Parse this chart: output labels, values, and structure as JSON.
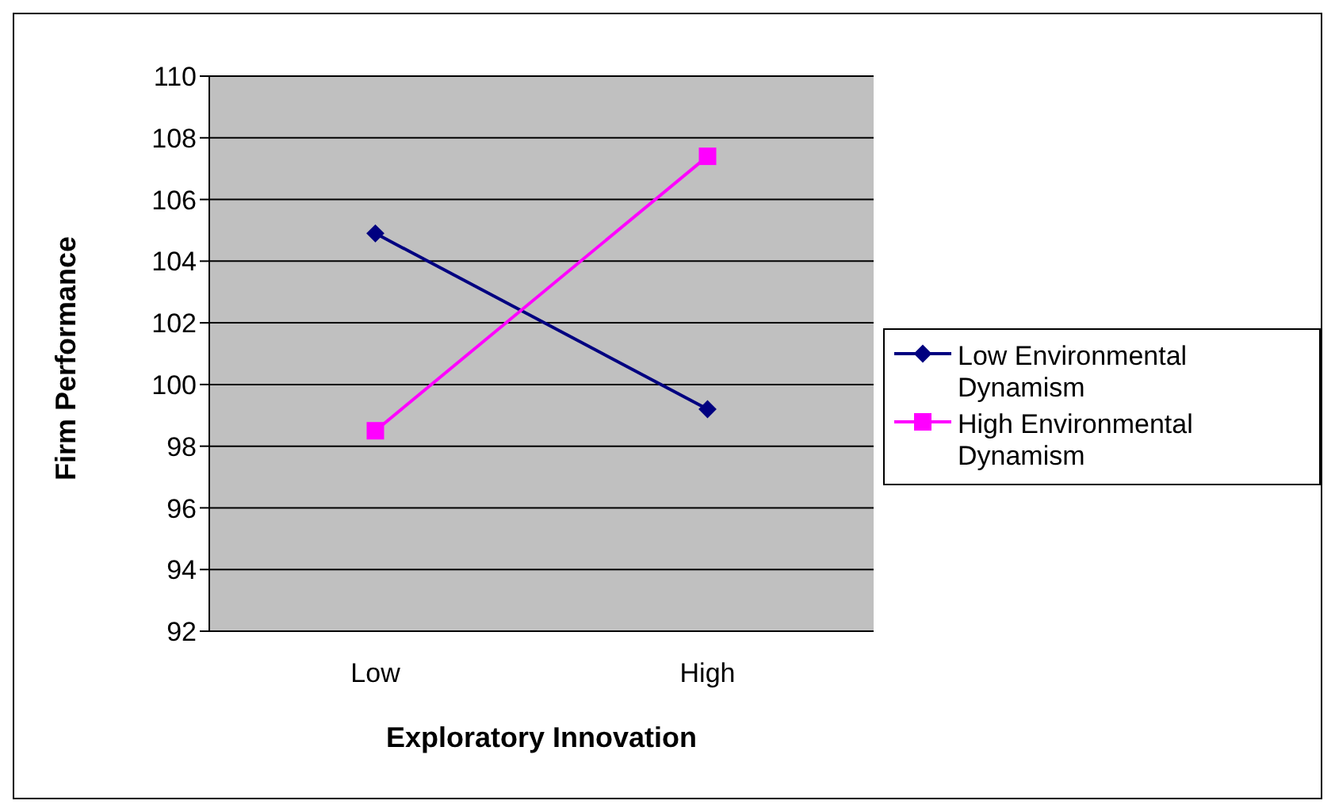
{
  "chart_data": {
    "type": "line",
    "xlabel": "Exploratory Innovation",
    "ylabel": "Firm Performance",
    "categories": [
      "Low",
      "High"
    ],
    "series": [
      {
        "name": "Low Environmental Dynamism",
        "color": "#000080",
        "values": [
          104.9,
          99.2
        ],
        "marker": "diamond"
      },
      {
        "name": "High Environmental Dynamism",
        "color": "#ff00ff",
        "values": [
          98.5,
          107.4
        ],
        "marker": "square"
      }
    ],
    "ylim": [
      92,
      110
    ],
    "yticks": [
      92,
      94,
      96,
      98,
      100,
      102,
      104,
      106,
      108,
      110
    ],
    "grid": "y",
    "legend": "right"
  }
}
